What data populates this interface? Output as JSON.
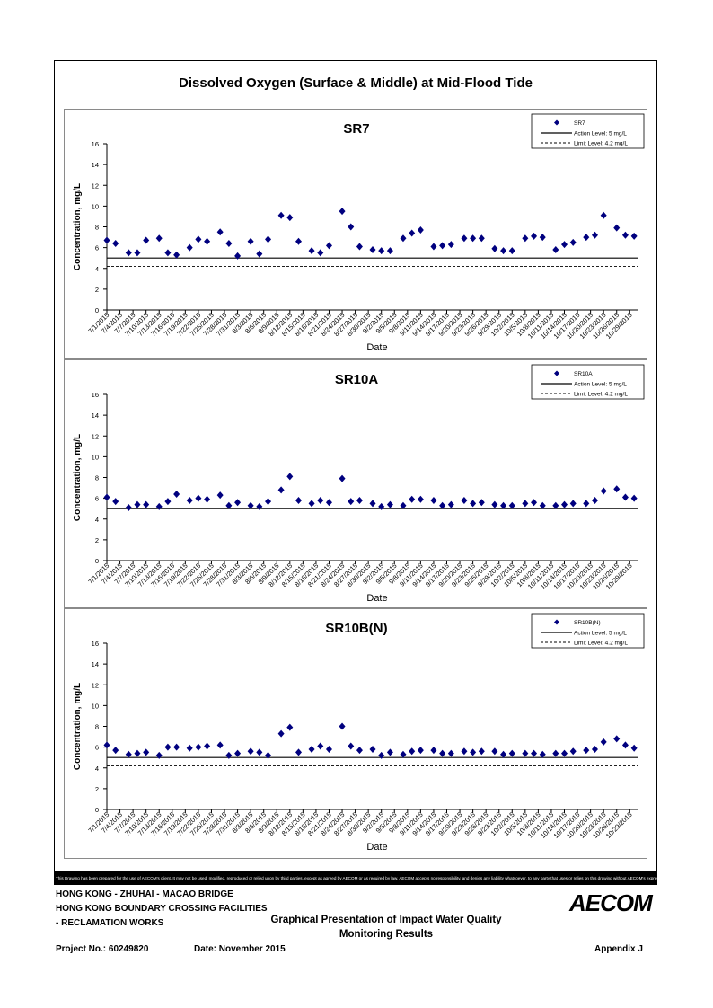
{
  "page": {
    "title": "Dissolved Oxygen (Surface & Middle) at Mid-Flood Tide",
    "disclaimer": "This Drawing has been prepared for the use of AECOM's client. It may not be used, modified, reproduced or relied upon by third parties, except as agreed by AECOM or as required by law. AECOM accepts no responsibility, and denies any liability whatsoever, to any party that uses or relies on this drawing without AECOM's express written consent.",
    "footer": {
      "line1": "HONG KONG - ZHUHAI - MACAO BRIDGE",
      "line2": "HONG KONG BOUNDARY CROSSING FACILITIES",
      "line3": "- RECLAMATION WORKS",
      "center_title_1": "Graphical Presentation of Impact Water Quality",
      "center_title_2": "Monitoring Results",
      "project_no": "Project No.: 60249820",
      "date": "Date: November 2015",
      "appendix": "Appendix J",
      "logo": "AECOM"
    },
    "colors": {
      "marker": "#00007f",
      "line": "#000000",
      "frame": "#000000",
      "panel_border": "#8a8a8a"
    }
  },
  "chart_data": [
    {
      "type": "scatter",
      "title": "SR7",
      "xlabel": "Date",
      "ylabel": "Concentration, mg/L",
      "ylim": [
        0,
        16
      ],
      "yticks": [
        "0",
        "2",
        "4",
        "6",
        "8",
        "10",
        "12",
        "14",
        "16"
      ],
      "xticks": [
        "7/1/2015",
        "7/4/2015",
        "7/7/2015",
        "7/10/2015",
        "7/13/2015",
        "7/16/2015",
        "7/19/2015",
        "7/22/2015",
        "7/25/2015",
        "7/28/2015",
        "7/31/2015",
        "8/3/2015",
        "8/6/2015",
        "8/9/2015",
        "8/12/2015",
        "8/15/2015",
        "8/18/2015",
        "8/21/2015",
        "8/24/2015",
        "8/27/2015",
        "8/30/2015",
        "9/2/2015",
        "9/5/2015",
        "9/8/2015",
        "9/11/2015",
        "9/14/2015",
        "9/17/2015",
        "9/20/2015",
        "9/23/2015",
        "9/26/2015",
        "9/29/2015",
        "10/2/2015",
        "10/5/2015",
        "10/8/2015",
        "10/11/2015",
        "10/14/2015",
        "10/17/2015",
        "10/20/2015",
        "10/23/2015",
        "10/26/2015",
        "10/29/2015"
      ],
      "legend": {
        "position": "top-right",
        "entries": [
          "SR7",
          "Action Level: 5 mg/L",
          "Limit Level: 4.2 mg/L"
        ]
      },
      "series": [
        {
          "name": "SR7",
          "points": [
            [
              "7/1/2015",
              6.7
            ],
            [
              "7/3/2015",
              6.4
            ],
            [
              "7/6/2015",
              5.5
            ],
            [
              "7/8/2015",
              5.5
            ],
            [
              "7/10/2015",
              6.7
            ],
            [
              "7/13/2015",
              6.9
            ],
            [
              "7/15/2015",
              5.5
            ],
            [
              "7/17/2015",
              5.3
            ],
            [
              "7/20/2015",
              6.0
            ],
            [
              "7/22/2015",
              6.8
            ],
            [
              "7/24/2015",
              6.6
            ],
            [
              "7/27/2015",
              7.5
            ],
            [
              "7/29/2015",
              6.4
            ],
            [
              "7/31/2015",
              5.2
            ],
            [
              "8/3/2015",
              6.6
            ],
            [
              "8/5/2015",
              5.4
            ],
            [
              "8/7/2015",
              6.8
            ],
            [
              "8/10/2015",
              9.1
            ],
            [
              "8/12/2015",
              8.9
            ],
            [
              "8/14/2015",
              6.6
            ],
            [
              "8/17/2015",
              5.7
            ],
            [
              "8/19/2015",
              5.5
            ],
            [
              "8/21/2015",
              6.2
            ],
            [
              "8/24/2015",
              9.5
            ],
            [
              "8/26/2015",
              8.0
            ],
            [
              "8/28/2015",
              6.1
            ],
            [
              "8/31/2015",
              5.8
            ],
            [
              "9/2/2015",
              5.7
            ],
            [
              "9/4/2015",
              5.7
            ],
            [
              "9/7/2015",
              6.9
            ],
            [
              "9/9/2015",
              7.4
            ],
            [
              "9/11/2015",
              7.7
            ],
            [
              "9/14/2015",
              6.1
            ],
            [
              "9/16/2015",
              6.2
            ],
            [
              "9/18/2015",
              6.3
            ],
            [
              "9/21/2015",
              6.9
            ],
            [
              "9/23/2015",
              6.9
            ],
            [
              "9/25/2015",
              6.9
            ],
            [
              "9/28/2015",
              5.9
            ],
            [
              "9/30/2015",
              5.7
            ],
            [
              "10/2/2015",
              5.7
            ],
            [
              "10/5/2015",
              6.9
            ],
            [
              "10/7/2015",
              7.1
            ],
            [
              "10/9/2015",
              7.0
            ],
            [
              "10/12/2015",
              5.8
            ],
            [
              "10/14/2015",
              6.3
            ],
            [
              "10/16/2015",
              6.5
            ],
            [
              "10/19/2015",
              7.0
            ],
            [
              "10/21/2015",
              7.2
            ],
            [
              "10/23/2015",
              9.1
            ],
            [
              "10/26/2015",
              7.9
            ],
            [
              "10/28/2015",
              7.2
            ],
            [
              "10/30/2015",
              7.1
            ]
          ]
        }
      ],
      "reference_lines": [
        {
          "name": "Action Level: 5 mg/L",
          "value": 5,
          "style": "solid"
        },
        {
          "name": "Limit Level: 4.2 mg/L",
          "value": 4.2,
          "style": "dashed"
        }
      ]
    },
    {
      "type": "scatter",
      "title": "SR10A",
      "xlabel": "Date",
      "ylabel": "Concentration, mg/L",
      "ylim": [
        0,
        16
      ],
      "yticks": [
        "0",
        "2",
        "4",
        "6",
        "8",
        "10",
        "12",
        "14",
        "16"
      ],
      "xticks": [
        "7/1/2015",
        "7/4/2015",
        "7/7/2015",
        "7/10/2015",
        "7/13/2015",
        "7/16/2015",
        "7/19/2015",
        "7/22/2015",
        "7/25/2015",
        "7/28/2015",
        "7/31/2015",
        "8/3/2015",
        "8/6/2015",
        "8/9/2015",
        "8/12/2015",
        "8/15/2015",
        "8/18/2015",
        "8/21/2015",
        "8/24/2015",
        "8/27/2015",
        "8/30/2015",
        "9/2/2015",
        "9/5/2015",
        "9/8/2015",
        "9/11/2015",
        "9/14/2015",
        "9/17/2015",
        "9/20/2015",
        "9/23/2015",
        "9/26/2015",
        "9/29/2015",
        "10/2/2015",
        "10/5/2015",
        "10/8/2015",
        "10/11/2015",
        "10/14/2015",
        "10/17/2015",
        "10/20/2015",
        "10/23/2015",
        "10/26/2015",
        "10/29/2015"
      ],
      "legend": {
        "position": "top-right",
        "entries": [
          "SR10A",
          "Action Level: 5 mg/L",
          "Limit Level: 4.2 mg/L"
        ]
      },
      "series": [
        {
          "name": "SR10A",
          "points": [
            [
              "7/1/2015",
              6.1
            ],
            [
              "7/3/2015",
              5.7
            ],
            [
              "7/6/2015",
              5.1
            ],
            [
              "7/8/2015",
              5.4
            ],
            [
              "7/10/2015",
              5.4
            ],
            [
              "7/13/2015",
              5.2
            ],
            [
              "7/15/2015",
              5.7
            ],
            [
              "7/17/2015",
              6.4
            ],
            [
              "7/20/2015",
              5.8
            ],
            [
              "7/22/2015",
              6.0
            ],
            [
              "7/24/2015",
              5.9
            ],
            [
              "7/27/2015",
              6.3
            ],
            [
              "7/29/2015",
              5.3
            ],
            [
              "7/31/2015",
              5.6
            ],
            [
              "8/3/2015",
              5.3
            ],
            [
              "8/5/2015",
              5.2
            ],
            [
              "8/7/2015",
              5.7
            ],
            [
              "8/10/2015",
              6.8
            ],
            [
              "8/12/2015",
              8.1
            ],
            [
              "8/14/2015",
              5.8
            ],
            [
              "8/17/2015",
              5.5
            ],
            [
              "8/19/2015",
              5.8
            ],
            [
              "8/21/2015",
              5.6
            ],
            [
              "8/24/2015",
              7.9
            ],
            [
              "8/26/2015",
              5.7
            ],
            [
              "8/28/2015",
              5.8
            ],
            [
              "8/31/2015",
              5.5
            ],
            [
              "9/2/2015",
              5.2
            ],
            [
              "9/4/2015",
              5.4
            ],
            [
              "9/7/2015",
              5.3
            ],
            [
              "9/9/2015",
              5.9
            ],
            [
              "9/11/2015",
              5.9
            ],
            [
              "9/14/2015",
              5.8
            ],
            [
              "9/16/2015",
              5.3
            ],
            [
              "9/18/2015",
              5.4
            ],
            [
              "9/21/2015",
              5.8
            ],
            [
              "9/23/2015",
              5.5
            ],
            [
              "9/25/2015",
              5.6
            ],
            [
              "9/28/2015",
              5.4
            ],
            [
              "9/30/2015",
              5.3
            ],
            [
              "10/2/2015",
              5.3
            ],
            [
              "10/5/2015",
              5.5
            ],
            [
              "10/7/2015",
              5.6
            ],
            [
              "10/9/2015",
              5.3
            ],
            [
              "10/12/2015",
              5.3
            ],
            [
              "10/14/2015",
              5.4
            ],
            [
              "10/16/2015",
              5.5
            ],
            [
              "10/19/2015",
              5.5
            ],
            [
              "10/21/2015",
              5.8
            ],
            [
              "10/23/2015",
              6.7
            ],
            [
              "10/26/2015",
              6.9
            ],
            [
              "10/28/2015",
              6.1
            ],
            [
              "10/30/2015",
              6.0
            ]
          ]
        }
      ],
      "reference_lines": [
        {
          "name": "Action Level: 5 mg/L",
          "value": 5,
          "style": "solid"
        },
        {
          "name": "Limit Level: 4.2 mg/L",
          "value": 4.2,
          "style": "dashed"
        }
      ]
    },
    {
      "type": "scatter",
      "title": "SR10B(N)",
      "xlabel": "Date",
      "ylabel": "Concentration, mg/L",
      "ylim": [
        0,
        16
      ],
      "yticks": [
        "0",
        "2",
        "4",
        "6",
        "8",
        "10",
        "12",
        "14",
        "16"
      ],
      "xticks": [
        "7/1/2015",
        "7/4/2015",
        "7/7/2015",
        "7/10/2015",
        "7/13/2015",
        "7/16/2015",
        "7/19/2015",
        "7/22/2015",
        "7/25/2015",
        "7/28/2015",
        "7/31/2015",
        "8/3/2015",
        "8/6/2015",
        "8/9/2015",
        "8/12/2015",
        "8/15/2015",
        "8/18/2015",
        "8/21/2015",
        "8/24/2015",
        "8/27/2015",
        "8/30/2015",
        "9/2/2015",
        "9/5/2015",
        "9/8/2015",
        "9/11/2015",
        "9/14/2015",
        "9/17/2015",
        "9/20/2015",
        "9/23/2015",
        "9/26/2015",
        "9/29/2015",
        "10/2/2015",
        "10/5/2015",
        "10/8/2015",
        "10/11/2015",
        "10/14/2015",
        "10/17/2015",
        "10/20/2015",
        "10/23/2015",
        "10/26/2015",
        "10/29/2015"
      ],
      "legend": {
        "position": "top-right",
        "entries": [
          "SR10B(N)",
          "Action Level: 5 mg/L",
          "Limit Level: 4.2 mg/L"
        ]
      },
      "series": [
        {
          "name": "SR10B(N)",
          "points": [
            [
              "7/1/2015",
              6.2
            ],
            [
              "7/3/2015",
              5.7
            ],
            [
              "7/6/2015",
              5.3
            ],
            [
              "7/8/2015",
              5.4
            ],
            [
              "7/10/2015",
              5.5
            ],
            [
              "7/13/2015",
              5.2
            ],
            [
              "7/15/2015",
              6.0
            ],
            [
              "7/17/2015",
              6.0
            ],
            [
              "7/20/2015",
              5.9
            ],
            [
              "7/22/2015",
              6.0
            ],
            [
              "7/24/2015",
              6.1
            ],
            [
              "7/27/2015",
              6.2
            ],
            [
              "7/29/2015",
              5.2
            ],
            [
              "7/31/2015",
              5.4
            ],
            [
              "8/3/2015",
              5.6
            ],
            [
              "8/5/2015",
              5.5
            ],
            [
              "8/7/2015",
              5.2
            ],
            [
              "8/10/2015",
              7.3
            ],
            [
              "8/12/2015",
              7.9
            ],
            [
              "8/14/2015",
              5.5
            ],
            [
              "8/17/2015",
              5.8
            ],
            [
              "8/19/2015",
              6.1
            ],
            [
              "8/21/2015",
              5.8
            ],
            [
              "8/24/2015",
              8.0
            ],
            [
              "8/26/2015",
              6.1
            ],
            [
              "8/28/2015",
              5.7
            ],
            [
              "8/31/2015",
              5.8
            ],
            [
              "9/2/2015",
              5.2
            ],
            [
              "9/4/2015",
              5.5
            ],
            [
              "9/7/2015",
              5.3
            ],
            [
              "9/9/2015",
              5.6
            ],
            [
              "9/11/2015",
              5.7
            ],
            [
              "9/14/2015",
              5.7
            ],
            [
              "9/16/2015",
              5.4
            ],
            [
              "9/18/2015",
              5.4
            ],
            [
              "9/21/2015",
              5.6
            ],
            [
              "9/23/2015",
              5.5
            ],
            [
              "9/25/2015",
              5.6
            ],
            [
              "9/28/2015",
              5.6
            ],
            [
              "9/30/2015",
              5.3
            ],
            [
              "10/2/2015",
              5.4
            ],
            [
              "10/5/2015",
              5.4
            ],
            [
              "10/7/2015",
              5.4
            ],
            [
              "10/9/2015",
              5.3
            ],
            [
              "10/12/2015",
              5.4
            ],
            [
              "10/14/2015",
              5.4
            ],
            [
              "10/16/2015",
              5.6
            ],
            [
              "10/19/2015",
              5.7
            ],
            [
              "10/21/2015",
              5.8
            ],
            [
              "10/23/2015",
              6.5
            ],
            [
              "10/26/2015",
              6.8
            ],
            [
              "10/28/2015",
              6.2
            ],
            [
              "10/30/2015",
              5.9
            ]
          ]
        }
      ],
      "reference_lines": [
        {
          "name": "Action Level: 5 mg/L",
          "value": 5,
          "style": "solid"
        },
        {
          "name": "Limit Level: 4.2 mg/L",
          "value": 4.2,
          "style": "dashed"
        }
      ]
    }
  ]
}
